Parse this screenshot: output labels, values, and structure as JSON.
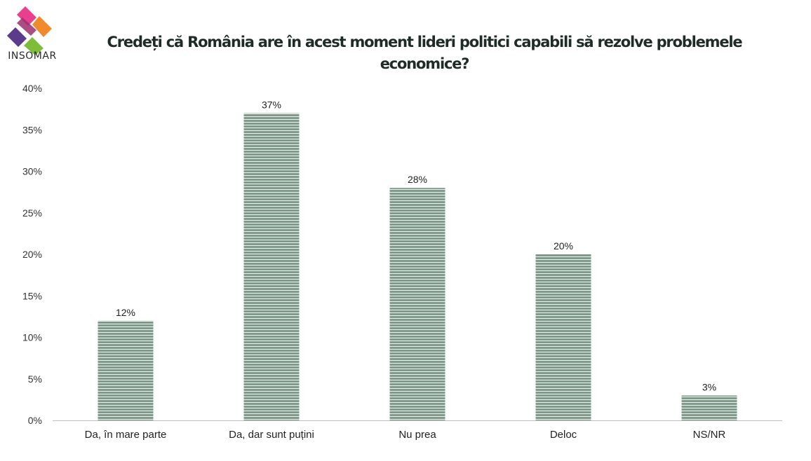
{
  "brand": {
    "name": "INSOMAR"
  },
  "chart_data": {
    "type": "bar",
    "title": "Credeți că România are în acest moment lideri politici capabili să rezolve problemele economice?",
    "categories": [
      "Da, în mare parte",
      "Da, dar sunt puțini",
      "Nu prea",
      "Deloc",
      "NS/NR"
    ],
    "values": [
      12,
      37,
      28,
      20,
      3
    ],
    "data_labels": [
      "12%",
      "37%",
      "28%",
      "20%",
      "3%"
    ],
    "yticks": [
      "0%",
      "5%",
      "10%",
      "15%",
      "20%",
      "25%",
      "30%",
      "35%",
      "40%"
    ],
    "ylim": [
      0,
      40
    ],
    "ystep": 5,
    "grid": false,
    "legend": "none",
    "colors": {
      "bar": "#7f9a8b",
      "bar_stripe": "#eef3f0",
      "axis": "#bfbfbf",
      "title": "#1e2b26"
    }
  }
}
